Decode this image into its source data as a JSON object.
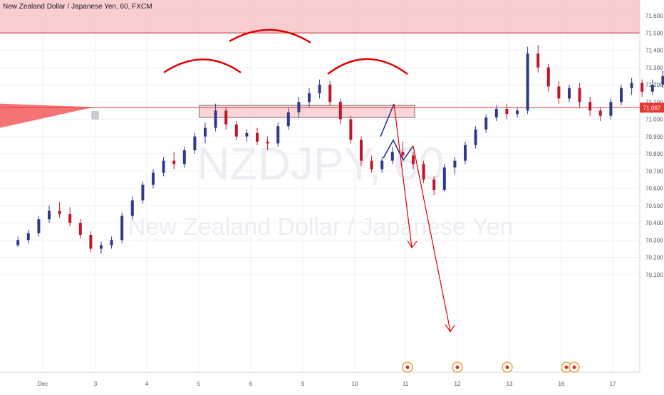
{
  "header": {
    "title": "New Zealand Dollar / Japanese Yen, 60, FXCM"
  },
  "watermark": {
    "symbol": "NZDJPY, 60",
    "name": "New Zealand Dollar / Japanese Yen"
  },
  "colors": {
    "up_candle": "#2f3a8f",
    "down_candle": "#c0162c",
    "annotation_red": "#e10000",
    "annotation_blue": "#1b2a8c",
    "zone_fill": "#f7b3b8",
    "price_tag": "#e53935",
    "grid": "#eef1f6"
  },
  "chart_data": {
    "type": "candlestick",
    "title": "New Zealand Dollar / Japanese Yen, 60, FXCM",
    "ylim": [
      70.05,
      71.65
    ],
    "y_ticks": [
      "71.600",
      "71.500",
      "71.400",
      "71.300",
      "71.200",
      "71.100",
      "71.000",
      "70.900",
      "70.800",
      "70.700",
      "70.600",
      "70.500",
      "70.400",
      "70.300",
      "70.200",
      "70.100"
    ],
    "x_ticks": [
      "Dec",
      "3",
      "4",
      "5",
      "6",
      "9",
      "10",
      "11",
      "12",
      "13",
      "16",
      "17"
    ],
    "last_price": "71.067",
    "resistance_zone": [
      71.5,
      71.7
    ],
    "neckline_zone": [
      71.01,
      71.08
    ],
    "series": [
      {
        "values": [
          [
            70.27,
            70.32,
            70.26,
            70.3
          ],
          [
            70.3,
            70.36,
            70.28,
            70.34
          ],
          [
            70.34,
            70.44,
            70.32,
            70.42
          ],
          [
            70.42,
            70.5,
            70.4,
            70.47
          ],
          [
            70.47,
            70.52,
            70.43,
            70.45
          ],
          [
            70.45,
            70.49,
            70.38,
            70.4
          ],
          [
            70.4,
            70.42,
            70.31,
            70.33
          ],
          [
            70.33,
            70.35,
            70.23,
            70.25
          ],
          [
            70.25,
            70.29,
            70.22,
            70.27
          ],
          [
            70.27,
            70.32,
            70.25,
            70.3
          ],
          [
            70.3,
            70.46,
            70.28,
            70.44
          ],
          [
            70.44,
            70.55,
            70.42,
            70.53
          ],
          [
            70.53,
            70.64,
            70.51,
            70.62
          ],
          [
            70.62,
            70.71,
            70.6,
            70.69
          ],
          [
            70.69,
            70.78,
            70.67,
            70.76
          ],
          [
            70.76,
            70.81,
            70.71,
            70.74
          ],
          [
            70.74,
            70.84,
            70.72,
            70.82
          ],
          [
            70.82,
            70.92,
            70.8,
            70.9
          ],
          [
            70.9,
            70.98,
            70.86,
            70.95
          ],
          [
            70.95,
            71.09,
            70.93,
            71.05
          ],
          [
            71.05,
            71.07,
            70.94,
            70.97
          ],
          [
            70.97,
            70.99,
            70.88,
            70.9
          ],
          [
            70.9,
            70.94,
            70.87,
            70.92
          ],
          [
            70.92,
            70.95,
            70.85,
            70.87
          ],
          [
            70.87,
            70.9,
            70.82,
            70.86
          ],
          [
            70.86,
            70.98,
            70.84,
            70.96
          ],
          [
            70.96,
            71.07,
            70.94,
            71.04
          ],
          [
            71.04,
            71.13,
            71.01,
            71.1
          ],
          [
            71.1,
            71.18,
            71.07,
            71.15
          ],
          [
            71.15,
            71.23,
            71.12,
            71.2
          ],
          [
            71.2,
            71.22,
            71.08,
            71.1
          ],
          [
            71.1,
            71.12,
            70.97,
            71.0
          ],
          [
            71.0,
            71.02,
            70.86,
            70.88
          ],
          [
            70.88,
            70.9,
            70.73,
            70.76
          ],
          [
            70.76,
            70.79,
            70.69,
            70.71
          ],
          [
            70.71,
            70.78,
            70.69,
            70.76
          ],
          [
            70.76,
            70.84,
            70.74,
            70.81
          ],
          [
            70.81,
            70.87,
            70.77,
            70.79
          ],
          [
            70.79,
            70.81,
            70.71,
            70.74
          ],
          [
            70.74,
            70.76,
            70.63,
            70.65
          ],
          [
            70.65,
            70.67,
            70.56,
            70.59
          ],
          [
            70.59,
            70.74,
            70.58,
            70.72
          ],
          [
            70.72,
            70.78,
            70.68,
            70.76
          ],
          [
            70.76,
            70.87,
            70.74,
            70.85
          ],
          [
            70.85,
            70.96,
            70.83,
            70.94
          ],
          [
            70.94,
            71.03,
            70.92,
            71.01
          ],
          [
            71.01,
            71.08,
            70.99,
            71.06
          ],
          [
            71.06,
            71.09,
            71.0,
            71.03
          ],
          [
            71.03,
            71.07,
            71.01,
            71.05
          ],
          [
            71.05,
            71.42,
            71.03,
            71.38
          ],
          [
            71.38,
            71.43,
            71.27,
            71.3
          ],
          [
            71.3,
            71.32,
            71.16,
            71.19
          ],
          [
            71.19,
            71.22,
            71.09,
            71.12
          ],
          [
            71.12,
            71.2,
            71.1,
            71.18
          ],
          [
            71.18,
            71.21,
            71.07,
            71.1
          ],
          [
            71.1,
            71.13,
            71.02,
            71.05
          ],
          [
            71.05,
            71.07,
            70.99,
            71.02
          ],
          [
            71.02,
            71.12,
            71.0,
            71.1
          ],
          [
            71.1,
            71.2,
            71.08,
            71.18
          ],
          [
            71.18,
            71.24,
            71.14,
            71.21
          ],
          [
            71.21,
            71.23,
            71.13,
            71.16
          ],
          [
            71.16,
            71.23,
            71.14,
            71.2
          ],
          [
            71.2,
            71.28,
            71.18,
            71.25
          ],
          [
            71.25,
            71.33,
            71.23,
            71.3
          ],
          [
            71.3,
            71.36,
            71.26,
            71.33
          ],
          [
            71.33,
            71.48,
            71.31,
            71.45
          ],
          [
            71.45,
            71.47,
            71.3,
            71.32
          ],
          [
            71.32,
            71.37,
            71.29,
            71.35
          ],
          [
            71.35,
            71.36,
            71.22,
            71.25
          ],
          [
            71.25,
            71.27,
            71.15,
            71.18
          ],
          [
            71.18,
            71.2,
            71.11,
            71.14
          ],
          [
            71.14,
            71.17,
            71.07,
            71.1
          ],
          [
            71.1,
            71.2,
            71.08,
            71.18
          ],
          [
            71.18,
            71.3,
            71.16,
            71.27
          ],
          [
            71.27,
            71.29,
            71.15,
            71.18
          ],
          [
            71.18,
            71.2,
            71.12,
            71.15
          ],
          [
            71.15,
            71.17,
            71.05,
            71.08
          ],
          [
            71.08,
            71.15,
            71.06,
            71.13
          ],
          [
            71.13,
            71.29,
            71.11,
            71.26
          ],
          [
            71.26,
            71.35,
            71.24,
            71.32
          ],
          [
            71.32,
            71.33,
            71.25,
            71.27
          ],
          [
            71.27,
            71.33,
            71.25,
            71.31
          ],
          [
            71.31,
            71.32,
            71.18,
            71.2
          ],
          [
            71.2,
            71.22,
            71.08,
            71.1
          ],
          [
            71.1,
            71.12,
            71.04,
            71.06
          ]
        ]
      }
    ],
    "candle_x": [
      0.5,
      1,
      1.5,
      2,
      2.5,
      3,
      3.5,
      4,
      4.5,
      5,
      5.5,
      6,
      6.5,
      7,
      7.5,
      8,
      8.5,
      9,
      9.5,
      10,
      10.5,
      11,
      11.5,
      12,
      12.5,
      13,
      13.5,
      14,
      14.5,
      15,
      15.5,
      16,
      16.5,
      17,
      17.5,
      18,
      18.5,
      19,
      19.5,
      20,
      20.5,
      21,
      21.5,
      22,
      22.5,
      23,
      23.5,
      24,
      24.5,
      25,
      25.5,
      26,
      26.5,
      27,
      27.5,
      28,
      28.5,
      29,
      29.5,
      30,
      30.5,
      31,
      31.5,
      32,
      32.5,
      33,
      33.5,
      34,
      34.5,
      35,
      35.5,
      36,
      36.5,
      37,
      37.5,
      38,
      38.5,
      39,
      39.5,
      40,
      40.5,
      41,
      41.5,
      42,
      42.5
    ]
  }
}
